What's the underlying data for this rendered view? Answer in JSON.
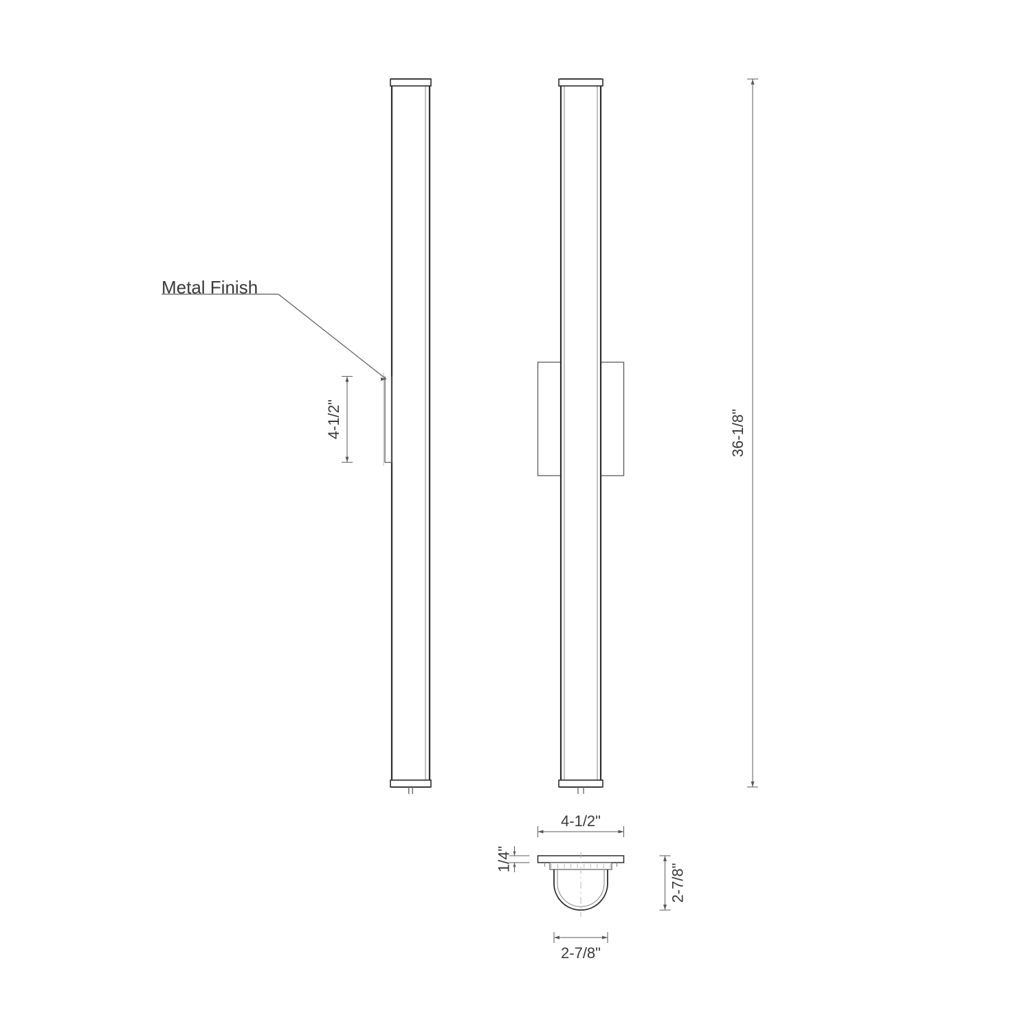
{
  "drawing": {
    "type": "technical-line-drawing",
    "colors": {
      "background": "#ffffff",
      "stroke_dark": "#2b2b2b",
      "stroke_mid": "#5a5a5a",
      "stroke_light": "#808080",
      "stroke_faint": "#b8b8b8",
      "text": "#3a3a3a"
    },
    "line_weights": {
      "heavy": 2.2,
      "normal": 1.3,
      "thin": 0.9
    },
    "callout": {
      "label": "Metal Finish"
    },
    "dimensions": {
      "bracket_height": "4-1/2\"",
      "overall_height": "36-1/8\"",
      "plan_mount_width": "4-1/2\"",
      "plan_mount_thickness": "1/4\"",
      "plan_depth": "2-7/8\"",
      "plan_tube_width": "2-7/8\""
    },
    "views": {
      "side": {
        "body_w": 55,
        "body_h": 1030,
        "bracket_h": 125
      },
      "front": {
        "body_w": 58,
        "body_h": 1030,
        "mount_w": 125,
        "mount_h": 165
      },
      "plan": {
        "mount_w": 125,
        "mount_t": 10,
        "tube_d": 78,
        "tube_drop": 20
      }
    }
  }
}
